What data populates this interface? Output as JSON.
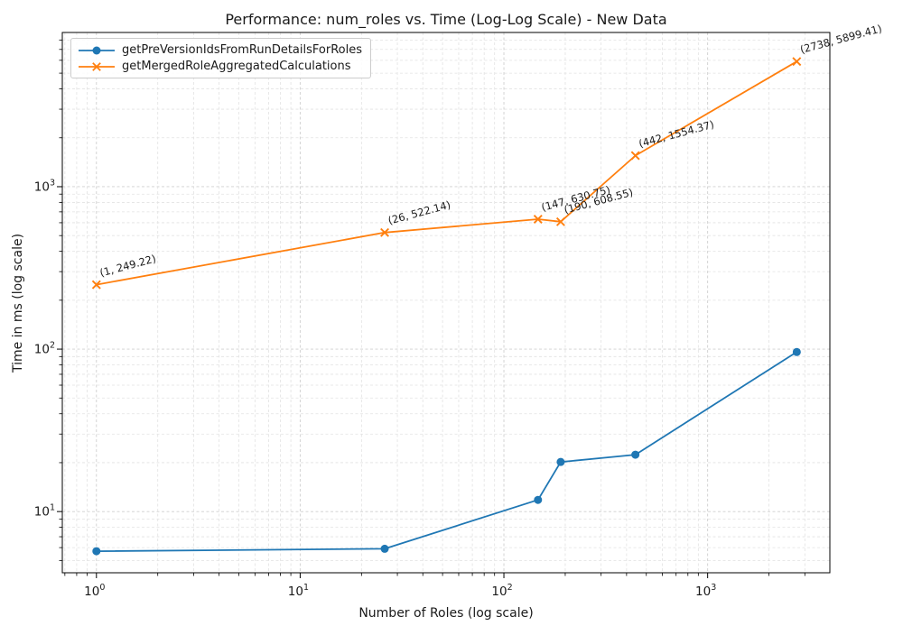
{
  "chart_data": {
    "type": "line",
    "title": "Performance: num_roles vs. Time (Log-Log Scale) - New Data",
    "xlabel": "Number of Roles (log scale)",
    "ylabel": "Time in ms (log scale)",
    "x_scale": "log",
    "y_scale": "log",
    "xlim": [
      0.68,
      3980
    ],
    "ylim": [
      4.2,
      8900
    ],
    "x_major_ticks": [
      1,
      10,
      100,
      1000
    ],
    "y_major_ticks": [
      10,
      100,
      1000
    ],
    "grid": "both major and minor, dashed, light gray",
    "legend_position": "upper left",
    "annotation_rotation_deg": -15,
    "series": [
      {
        "name": "getPreVersionIdsFromRunDetailsForRoles",
        "color": "#1f77b4",
        "marker": "circle",
        "x": [
          1,
          26,
          147,
          190,
          442,
          2738
        ],
        "y": [
          5.7,
          5.9,
          11.8,
          20.2,
          22.4,
          96
        ],
        "annotations": [
          "",
          "",
          "",
          "",
          "",
          ""
        ]
      },
      {
        "name": "getMergedRoleAggregatedCalculations",
        "color": "#ff7f0e",
        "marker": "x",
        "x": [
          1,
          26,
          147,
          190,
          442,
          2738
        ],
        "y": [
          249.22,
          522.14,
          630.75,
          608.55,
          1554.37,
          5899.41
        ],
        "annotations": [
          "(1, 249.22)",
          "(26, 522.14)",
          "(147, 630.75)",
          "(190, 608.55)",
          "(442, 1554.37)",
          "(2738, 5899.41)"
        ]
      }
    ]
  }
}
